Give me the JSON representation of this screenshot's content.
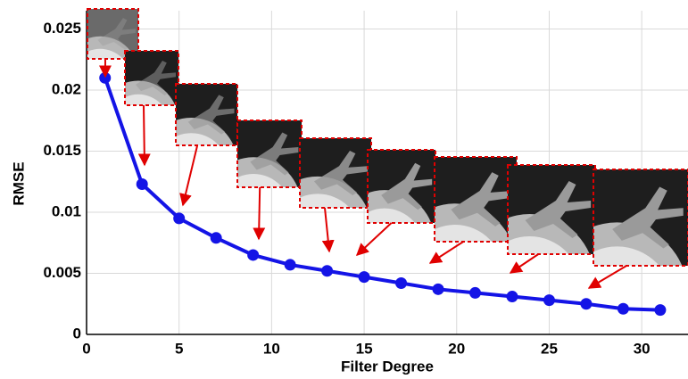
{
  "chart_data": {
    "type": "line",
    "x_label": "Filter Degree",
    "y_label": "RMSE",
    "x": [
      1,
      3,
      5,
      7,
      9,
      11,
      13,
      15,
      17,
      19,
      21,
      23,
      25,
      27,
      29,
      31
    ],
    "series": [
      {
        "name": "RMSE",
        "color": "#1414e6",
        "values": [
          0.021,
          0.0123,
          0.0095,
          0.0079,
          0.0065,
          0.0057,
          0.0052,
          0.0047,
          0.0042,
          0.0037,
          0.0034,
          0.0031,
          0.0028,
          0.0025,
          0.0021,
          0.002
        ]
      }
    ],
    "xlim": [
      0,
      32.5
    ],
    "xticks": [
      0,
      5,
      10,
      15,
      20,
      25,
      30
    ],
    "ylim": [
      0,
      0.0265
    ],
    "yticks": [
      0,
      0.005,
      0.01,
      0.015,
      0.02,
      0.025
    ],
    "grid": true
  }
}
